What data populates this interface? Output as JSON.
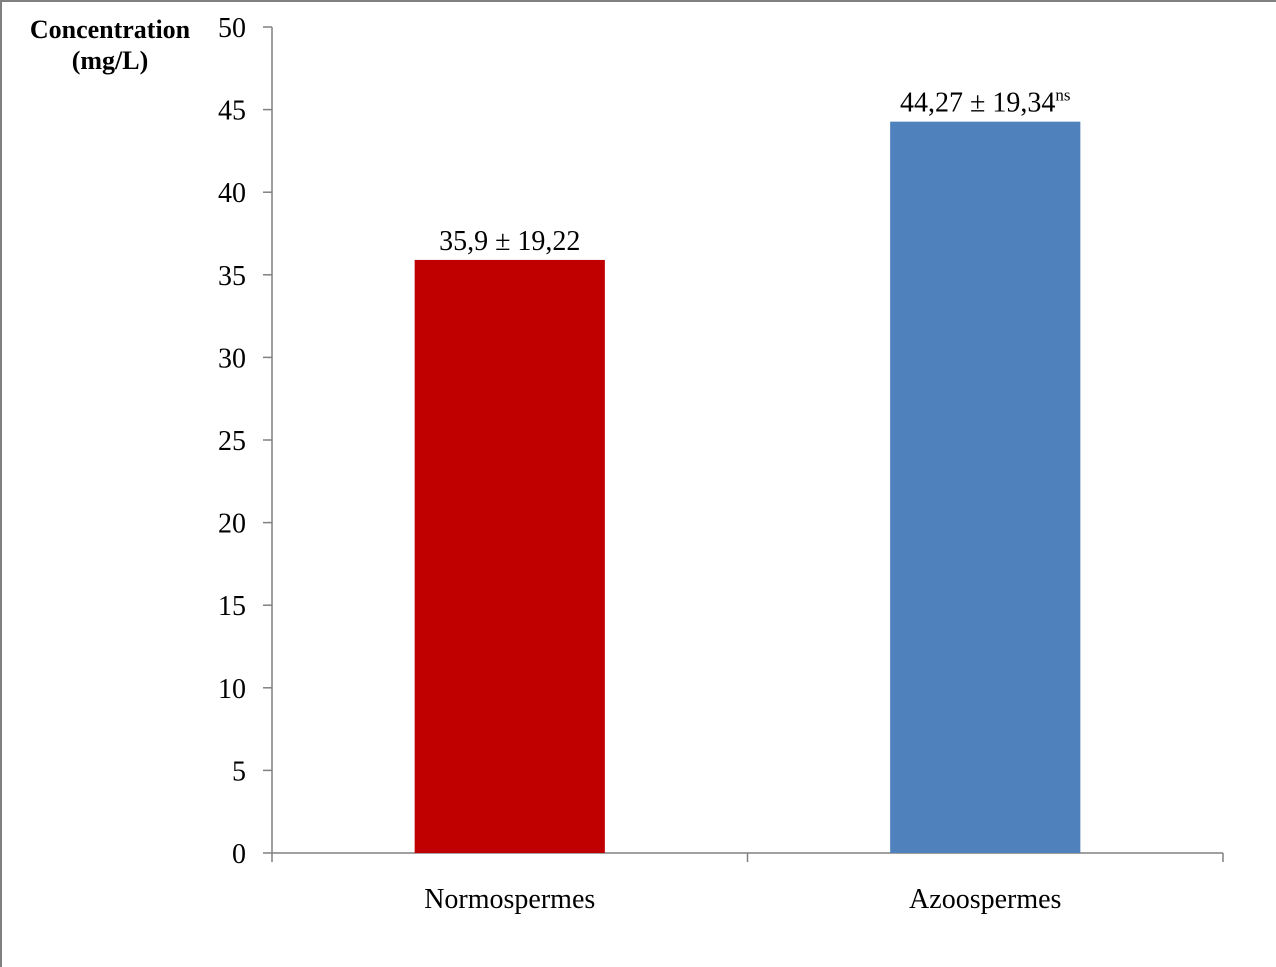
{
  "chart_data": {
    "type": "bar",
    "ylabel": "Concentration\n(mg/L)",
    "ylim": [
      0,
      50
    ],
    "ytick_step": 5,
    "categories": [
      "Normospermes",
      "Azoospermes"
    ],
    "values": [
      35.9,
      44.27
    ],
    "colors": [
      "#C00000",
      "#4F81BD"
    ],
    "data_labels": [
      "35,9 ± 19,22",
      "44,27 ± 19,34"
    ],
    "data_label_superscripts": [
      "",
      "ns"
    ],
    "grid": false,
    "legend": "none"
  }
}
